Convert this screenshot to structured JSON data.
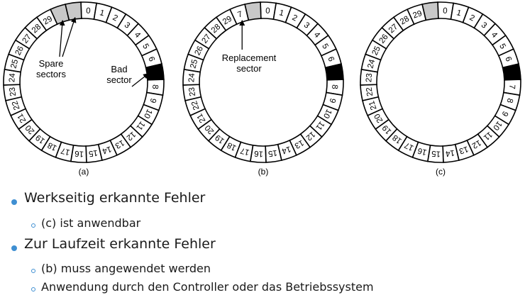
{
  "colors": {
    "spare_fill": "#c8c8c8",
    "bad_fill": "#000000",
    "ring_fill": "#ffffff",
    "stroke": "#000000",
    "bullet_accent": "#3f8fd2",
    "text": "#1a1a1a"
  },
  "disks": [
    {
      "caption": "(a)",
      "sectors": [
        {
          "label": "0",
          "kind": "normal"
        },
        {
          "label": "1",
          "kind": "normal"
        },
        {
          "label": "2",
          "kind": "normal"
        },
        {
          "label": "3",
          "kind": "normal"
        },
        {
          "label": "4",
          "kind": "normal"
        },
        {
          "label": "5",
          "kind": "normal"
        },
        {
          "label": "6",
          "kind": "normal"
        },
        {
          "label": "",
          "kind": "bad"
        },
        {
          "label": "8",
          "kind": "normal"
        },
        {
          "label": "9",
          "kind": "normal"
        },
        {
          "label": "10",
          "kind": "normal"
        },
        {
          "label": "11",
          "kind": "normal"
        },
        {
          "label": "12",
          "kind": "normal"
        },
        {
          "label": "13",
          "kind": "normal"
        },
        {
          "label": "14",
          "kind": "normal"
        },
        {
          "label": "15",
          "kind": "normal"
        },
        {
          "label": "16",
          "kind": "normal"
        },
        {
          "label": "17",
          "kind": "normal"
        },
        {
          "label": "18",
          "kind": "normal"
        },
        {
          "label": "19",
          "kind": "normal"
        },
        {
          "label": "20",
          "kind": "normal"
        },
        {
          "label": "21",
          "kind": "normal"
        },
        {
          "label": "22",
          "kind": "normal"
        },
        {
          "label": "23",
          "kind": "normal"
        },
        {
          "label": "24",
          "kind": "normal"
        },
        {
          "label": "25",
          "kind": "normal"
        },
        {
          "label": "26",
          "kind": "normal"
        },
        {
          "label": "27",
          "kind": "normal"
        },
        {
          "label": "28",
          "kind": "normal"
        },
        {
          "label": "29",
          "kind": "normal"
        },
        {
          "label": "",
          "kind": "spare"
        },
        {
          "label": "",
          "kind": "spare"
        }
      ],
      "annotations": [
        {
          "lines": [
            "Spare",
            "sectors"
          ],
          "arrows": [
            "spare-1",
            "spare-2"
          ]
        },
        {
          "lines": [
            "Bad",
            "sector"
          ],
          "arrows": [
            "bad"
          ]
        }
      ]
    },
    {
      "caption": "(b)",
      "sectors": [
        {
          "label": "0",
          "kind": "normal"
        },
        {
          "label": "1",
          "kind": "normal"
        },
        {
          "label": "2",
          "kind": "normal"
        },
        {
          "label": "3",
          "kind": "normal"
        },
        {
          "label": "4",
          "kind": "normal"
        },
        {
          "label": "5",
          "kind": "normal"
        },
        {
          "label": "6",
          "kind": "normal"
        },
        {
          "label": "",
          "kind": "bad"
        },
        {
          "label": "8",
          "kind": "normal"
        },
        {
          "label": "9",
          "kind": "normal"
        },
        {
          "label": "10",
          "kind": "normal"
        },
        {
          "label": "11",
          "kind": "normal"
        },
        {
          "label": "12",
          "kind": "normal"
        },
        {
          "label": "13",
          "kind": "normal"
        },
        {
          "label": "14",
          "kind": "normal"
        },
        {
          "label": "15",
          "kind": "normal"
        },
        {
          "label": "16",
          "kind": "normal"
        },
        {
          "label": "17",
          "kind": "normal"
        },
        {
          "label": "18",
          "kind": "normal"
        },
        {
          "label": "19",
          "kind": "normal"
        },
        {
          "label": "20",
          "kind": "normal"
        },
        {
          "label": "21",
          "kind": "normal"
        },
        {
          "label": "22",
          "kind": "normal"
        },
        {
          "label": "23",
          "kind": "normal"
        },
        {
          "label": "24",
          "kind": "normal"
        },
        {
          "label": "25",
          "kind": "normal"
        },
        {
          "label": "26",
          "kind": "normal"
        },
        {
          "label": "27",
          "kind": "normal"
        },
        {
          "label": "28",
          "kind": "normal"
        },
        {
          "label": "29",
          "kind": "normal"
        },
        {
          "label": "7",
          "kind": "normal"
        },
        {
          "label": "",
          "kind": "spare"
        }
      ],
      "annotations": [
        {
          "lines": [
            "Replacement",
            "sector"
          ],
          "arrows": [
            "replacement"
          ]
        }
      ]
    },
    {
      "caption": "(c)",
      "sectors": [
        {
          "label": "0",
          "kind": "normal"
        },
        {
          "label": "1",
          "kind": "normal"
        },
        {
          "label": "2",
          "kind": "normal"
        },
        {
          "label": "3",
          "kind": "normal"
        },
        {
          "label": "4",
          "kind": "normal"
        },
        {
          "label": "5",
          "kind": "normal"
        },
        {
          "label": "6",
          "kind": "normal"
        },
        {
          "label": "",
          "kind": "bad"
        },
        {
          "label": "7",
          "kind": "normal"
        },
        {
          "label": "8",
          "kind": "normal"
        },
        {
          "label": "9",
          "kind": "normal"
        },
        {
          "label": "10",
          "kind": "normal"
        },
        {
          "label": "11",
          "kind": "normal"
        },
        {
          "label": "12",
          "kind": "normal"
        },
        {
          "label": "13",
          "kind": "normal"
        },
        {
          "label": "14",
          "kind": "normal"
        },
        {
          "label": "15",
          "kind": "normal"
        },
        {
          "label": "16",
          "kind": "normal"
        },
        {
          "label": "17",
          "kind": "normal"
        },
        {
          "label": "18",
          "kind": "normal"
        },
        {
          "label": "19",
          "kind": "normal"
        },
        {
          "label": "20",
          "kind": "normal"
        },
        {
          "label": "21",
          "kind": "normal"
        },
        {
          "label": "22",
          "kind": "normal"
        },
        {
          "label": "23",
          "kind": "normal"
        },
        {
          "label": "24",
          "kind": "normal"
        },
        {
          "label": "25",
          "kind": "normal"
        },
        {
          "label": "26",
          "kind": "normal"
        },
        {
          "label": "27",
          "kind": "normal"
        },
        {
          "label": "28",
          "kind": "normal"
        },
        {
          "label": "29",
          "kind": "normal"
        },
        {
          "label": "",
          "kind": "spare"
        }
      ],
      "annotations": []
    }
  ],
  "bullets": [
    {
      "text": "Werkseitig erkannte Fehler",
      "sub": [
        "(c) ist anwendbar"
      ]
    },
    {
      "text": "Zur Laufzeit erkannte Fehler",
      "sub": [
        "(b) muss angewendet werden",
        "Anwendung durch den Controller oder das Betriebssystem"
      ]
    }
  ]
}
